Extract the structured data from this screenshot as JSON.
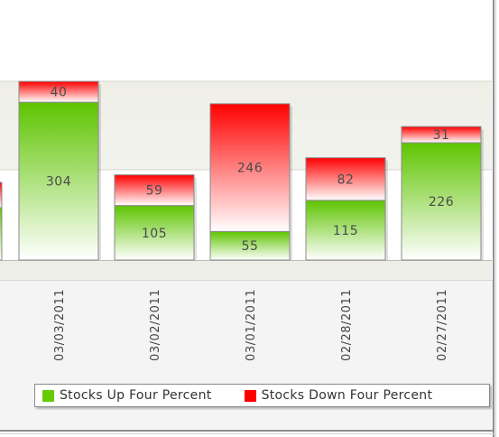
{
  "chart_data": {
    "type": "bar",
    "stacked": true,
    "categories": [
      "03/03/2011",
      "03/02/2011",
      "03/01/2011",
      "02/28/2011",
      "02/27/2011"
    ],
    "series": [
      {
        "name": "Stocks Up Four Percent",
        "values": [
          304,
          105,
          55,
          115,
          226
        ],
        "color": "#66cc00"
      },
      {
        "name": "Stocks Down Four Percent",
        "values": [
          40,
          59,
          246,
          82,
          31
        ],
        "color": "#ff0000"
      }
    ],
    "data_labels": true,
    "legend_position": "bottom",
    "grid": true
  }
}
